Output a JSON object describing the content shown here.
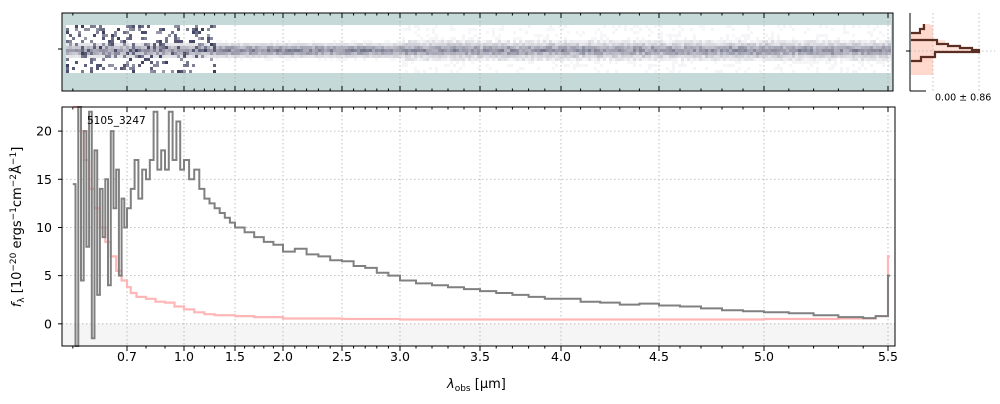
{
  "chart_data": {
    "type": "line",
    "object_label": "5105_3247",
    "xlabel": "λobs [μm]",
    "xlabel_main": "λ",
    "xlabel_sub": "obs",
    "xlabel_unit": " [μm]",
    "ylabel": "fλ [10^-20 ergs^-1 cm^-2 Å^-1]",
    "xlim": [
      0.58,
      5.52
    ],
    "ylim": [
      -2.3,
      22.5
    ],
    "x_ticks": [
      0.7,
      1.0,
      1.5,
      2.0,
      2.5,
      3.0,
      3.5,
      4.0,
      4.5,
      5.0,
      5.5
    ],
    "x_tick_labels": [
      "0.7",
      "1.0",
      "1.5",
      "2.0",
      "2.5",
      "3.0",
      "3.5",
      "4.0",
      "4.5",
      "5.0",
      "5.5"
    ],
    "y_ticks": [
      0,
      5,
      10,
      15,
      20
    ],
    "y_tick_labels": [
      "0",
      "5",
      "10",
      "15",
      "20"
    ],
    "grid": true,
    "series": [
      {
        "name": "flux",
        "color": "#808080",
        "x": [
          0.6,
          0.605,
          0.61,
          0.615,
          0.62,
          0.625,
          0.63,
          0.635,
          0.64,
          0.645,
          0.65,
          0.655,
          0.66,
          0.665,
          0.67,
          0.675,
          0.68,
          0.685,
          0.69,
          0.695,
          0.7,
          0.72,
          0.74,
          0.76,
          0.78,
          0.8,
          0.82,
          0.84,
          0.86,
          0.88,
          0.9,
          0.92,
          0.94,
          0.96,
          0.98,
          1.0,
          1.05,
          1.1,
          1.15,
          1.2,
          1.25,
          1.3,
          1.35,
          1.4,
          1.45,
          1.5,
          1.6,
          1.7,
          1.8,
          1.9,
          2.0,
          2.1,
          2.2,
          2.3,
          2.4,
          2.5,
          2.6,
          2.7,
          2.8,
          2.9,
          3.0,
          3.1,
          3.2,
          3.3,
          3.4,
          3.5,
          3.6,
          3.7,
          3.8,
          3.9,
          4.0,
          4.1,
          4.2,
          4.3,
          4.4,
          4.5,
          4.6,
          4.7,
          4.8,
          4.9,
          5.0,
          5.1,
          5.2,
          5.3,
          5.4,
          5.45,
          5.5
        ],
        "y": [
          14.5,
          -2.3,
          22.5,
          4.5,
          20,
          8,
          22,
          -1.5,
          18,
          3,
          14,
          9,
          15,
          4,
          20,
          12,
          16,
          5,
          13,
          10,
          12,
          14,
          17,
          13,
          16,
          15,
          17,
          22,
          16,
          18,
          16,
          22,
          17,
          21,
          16,
          17,
          15,
          16,
          14,
          13,
          12.5,
          12,
          11.5,
          11,
          10.5,
          10,
          9.5,
          9,
          8.5,
          8.2,
          7.5,
          7.8,
          7.2,
          7,
          6.6,
          6.5,
          6,
          5.8,
          5.3,
          5,
          4.5,
          4.2,
          4,
          3.8,
          3.6,
          3.4,
          3.2,
          3,
          2.8,
          2.6,
          2.6,
          2.3,
          2.2,
          2,
          2.1,
          1.9,
          1.8,
          1.6,
          1.4,
          1.3,
          1.2,
          1.1,
          0.9,
          0.7,
          0.6,
          0.8,
          5
        ]
      },
      {
        "name": "error",
        "color": "#ffb6b6",
        "x": [
          0.6,
          0.61,
          0.62,
          0.63,
          0.64,
          0.65,
          0.66,
          0.67,
          0.68,
          0.69,
          0.7,
          0.72,
          0.75,
          0.8,
          0.85,
          0.9,
          0.95,
          1.0,
          1.1,
          1.2,
          1.3,
          1.5,
          1.7,
          2.0,
          2.5,
          3.0,
          3.5,
          4.0,
          4.5,
          5.0,
          5.3,
          5.45,
          5.5
        ],
        "y": [
          22.5,
          20,
          17,
          14,
          12,
          10,
          8.5,
          7,
          5.5,
          4.5,
          3.8,
          3.2,
          2.8,
          2.6,
          2.3,
          2.2,
          1.8,
          1.5,
          1.2,
          1.0,
          0.9,
          0.8,
          0.7,
          0.55,
          0.5,
          0.45,
          0.45,
          0.45,
          0.45,
          0.5,
          0.55,
          0.8,
          7
        ]
      }
    ]
  },
  "spectrum_2d": {
    "background_color": "#c5d9d8",
    "trace_color": "#3a3d5c"
  },
  "histogram": {
    "label": "0.00 ± 0.86",
    "line_color": "#5a2e22",
    "fill_color": "#ffcfc0"
  }
}
